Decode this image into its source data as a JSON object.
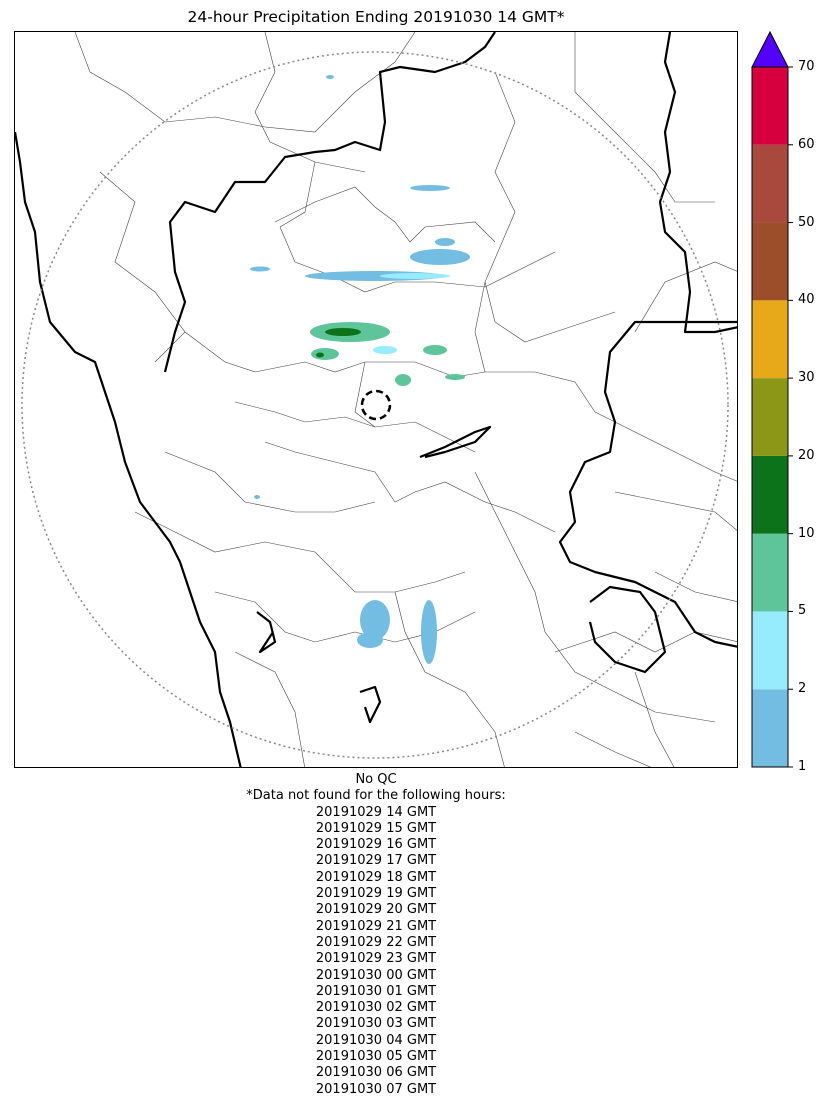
{
  "title": "24-hour Precipitation Ending 20191030 14 GMT*",
  "colorbar": {
    "ticks": [
      "1",
      "2",
      "5",
      "10",
      "20",
      "30",
      "40",
      "50",
      "60",
      "70"
    ],
    "colors": [
      "#74bde2",
      "#96ecfc",
      "#5ec59b",
      "#0d731b",
      "#8c9718",
      "#e7a91a",
      "#9c4e2a",
      "#a9493d",
      "#d7003f"
    ],
    "over_color": "#5300ff"
  },
  "qc_label": "No QC",
  "missing_header": "*Data not found for the following hours:",
  "missing_hours": [
    "20191029 14 GMT",
    "20191029 15 GMT",
    "20191029 16 GMT",
    "20191029 17 GMT",
    "20191029 18 GMT",
    "20191029 19 GMT",
    "20191029 20 GMT",
    "20191029 21 GMT",
    "20191029 22 GMT",
    "20191029 23 GMT",
    "20191030 00 GMT",
    "20191030 01 GMT",
    "20191030 02 GMT",
    "20191030 03 GMT",
    "20191030 04 GMT",
    "20191030 05 GMT",
    "20191030 06 GMT",
    "20191030 07 GMT"
  ]
}
